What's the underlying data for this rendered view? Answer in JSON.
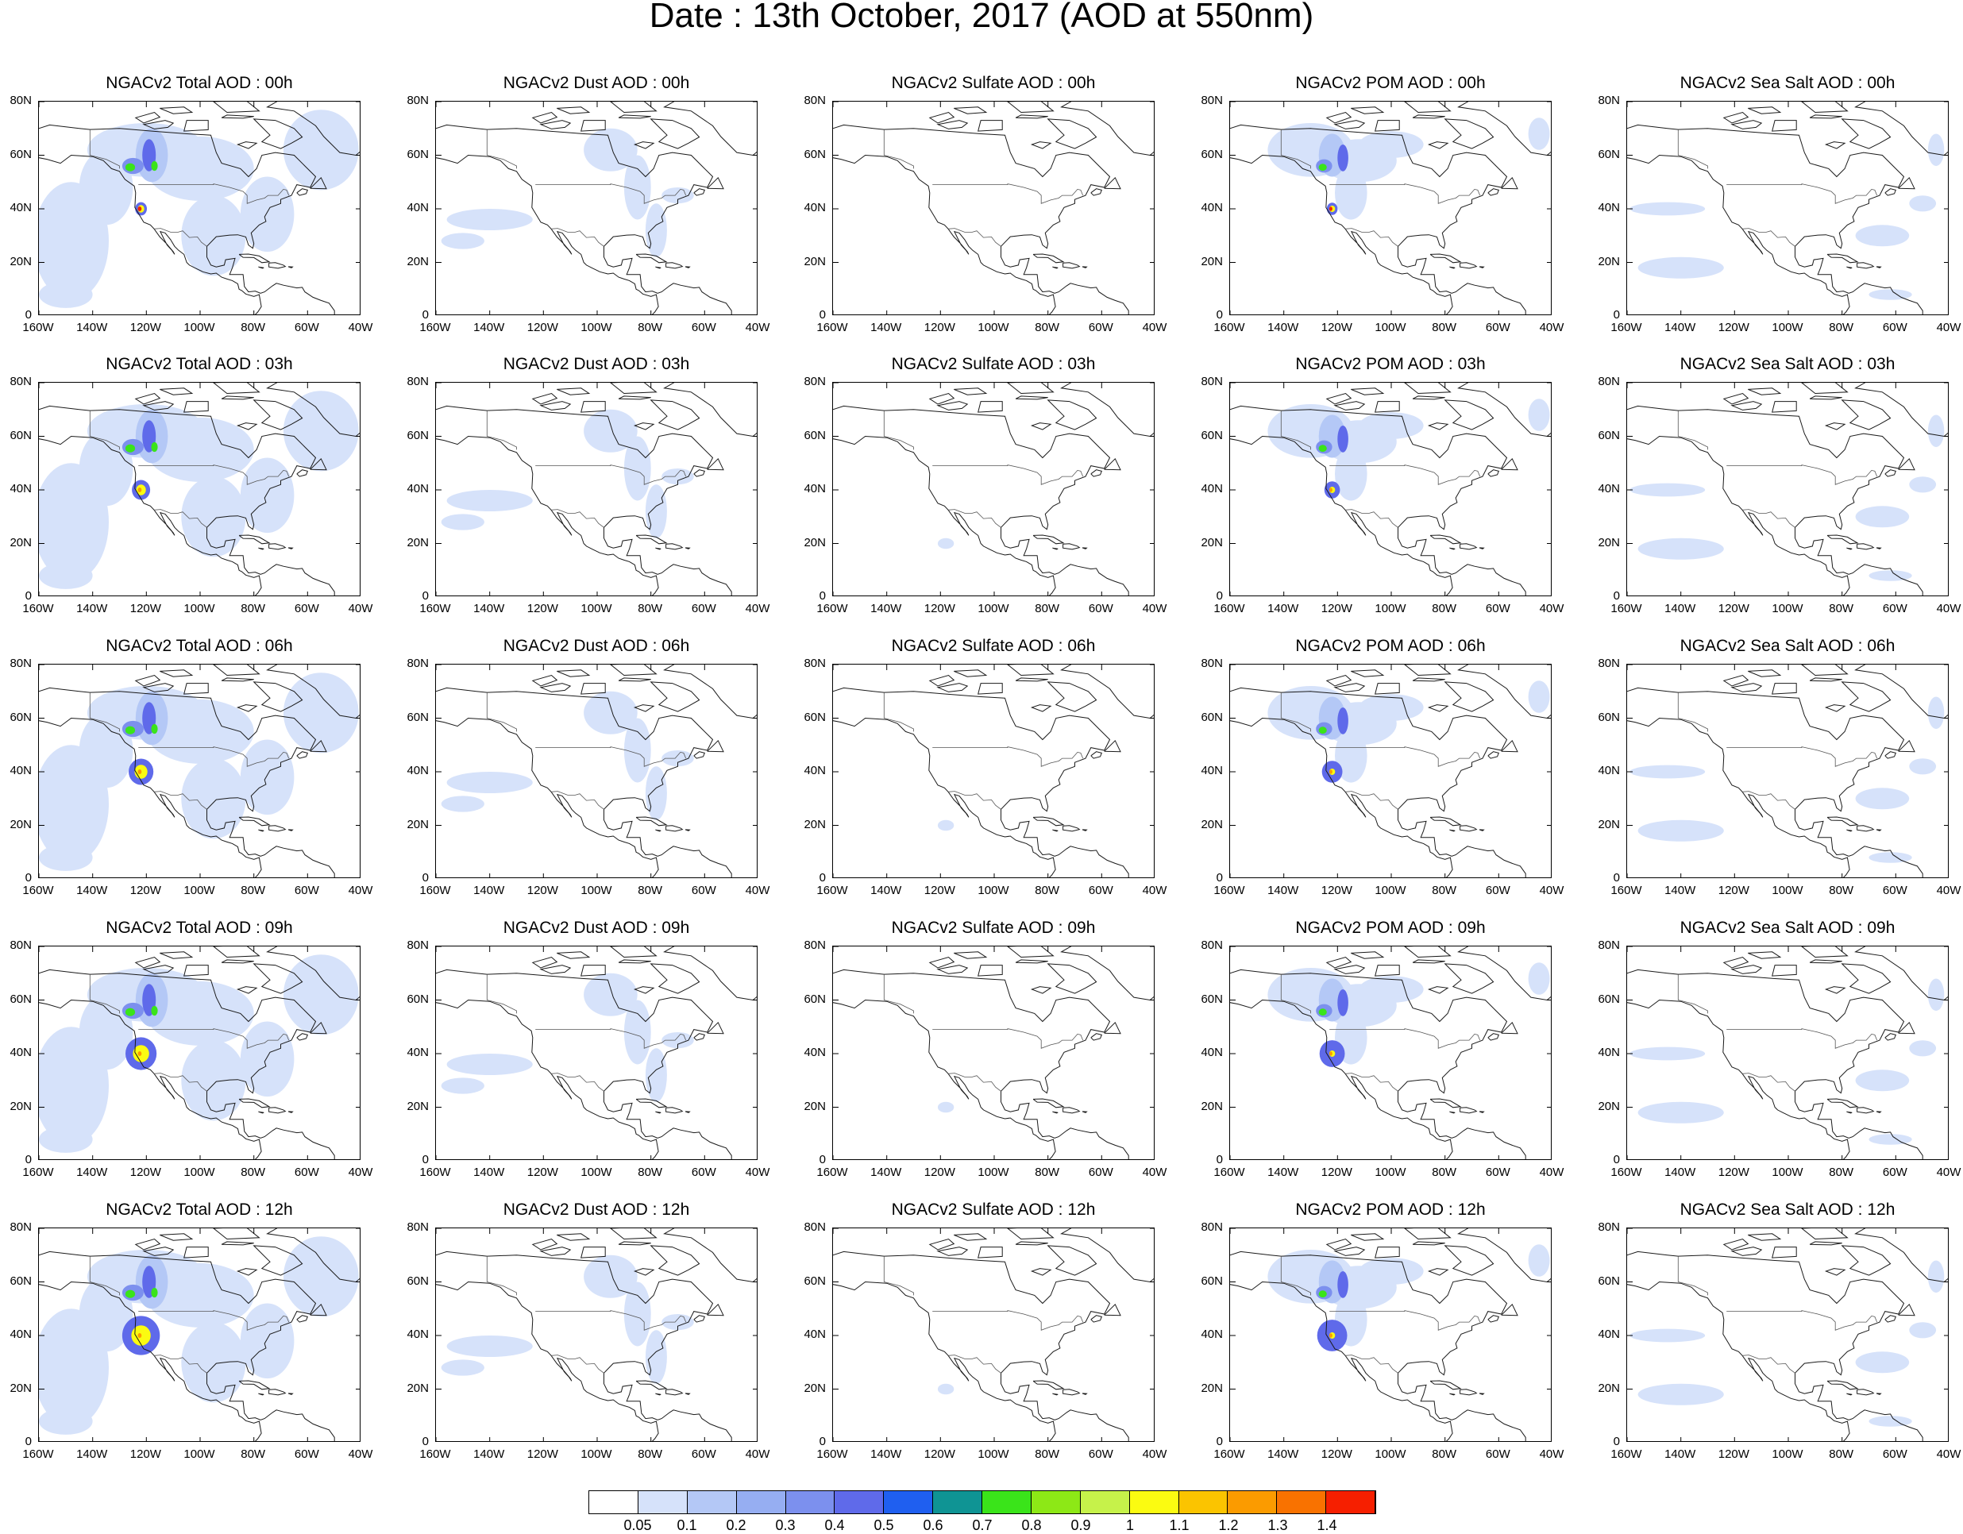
{
  "title": "Date : 13th October, 2017 (AOD at 550nm)",
  "lat_ticks": [
    "80N",
    "60N",
    "40N",
    "20N",
    "0"
  ],
  "lon_ticks": [
    "160W",
    "140W",
    "120W",
    "100W",
    "80W",
    "60W",
    "40W"
  ],
  "map_extent": {
    "lon": [
      -160,
      -40
    ],
    "lat": [
      0,
      80
    ]
  },
  "columns": [
    {
      "field": "total",
      "titles": [
        "NGACv2 Total AOD : 00h",
        "NGACv2 Total AOD : 03h",
        "NGACv2 Total AOD : 06h",
        "NGACv2 Total AOD : 09h",
        "NGACv2 Total AOD  : 12h"
      ]
    },
    {
      "field": "dust",
      "titles": [
        "NGACv2 Dust AOD : 00h",
        "NGACv2 Dust AOD : 03h",
        "NGACv2 Dust AOD : 06h",
        "NGACv2 Dust AOD : 09h",
        "NGACv2 Dust AOD : 12h"
      ]
    },
    {
      "field": "sulfate",
      "titles": [
        "NGACv2 Sulfate AOD : 00h",
        "NGACv2 Sulfate AOD : 03h",
        "NGACv2 Sulfate AOD : 06h",
        "NGACv2 Sulfate AOD : 09h",
        "NGACv2 Sulfate AOD : 12h"
      ]
    },
    {
      "field": "pom",
      "titles": [
        "NGACv2 POM AOD : 00h",
        "NGACv2 POM AOD : 03h",
        "NGACv2 POM AOD : 06h",
        "NGACv2 POM AOD : 09h",
        "NGACv2 POM  AOD : 12h"
      ]
    },
    {
      "field": "seasalt",
      "titles": [
        "NGACv2 Sea Salt AOD : 00h",
        "NGACv2 Sea Salt AOD : 03h",
        "NGACv2 Sea Salt AOD : 06h",
        "NGACv2 Sea Salt  AOD : 09h",
        "NGACv2 Sea Salt  AOD : 12h"
      ]
    }
  ],
  "colorbar": {
    "labels": [
      "0.05",
      "0.1",
      "0.2",
      "0.3",
      "0.4",
      "0.5",
      "0.6",
      "0.7",
      "0.8",
      "0.9",
      "1",
      "1.1",
      "1.2",
      "1.3",
      "1.4"
    ],
    "colors": [
      "#ffffff",
      "#d6e2fa",
      "#b4c8f6",
      "#96aef2",
      "#7c90ee",
      "#5f6aea",
      "#1f5ff0",
      "#0f9494",
      "#3ae41a",
      "#8de816",
      "#c6f24a",
      "#fbfb11",
      "#fbc400",
      "#fb9b00",
      "#f97200",
      "#f61f00"
    ]
  },
  "field_colors": {
    "light": "#d6e2fa",
    "mid": "#b4c8f6",
    "blue": "#7c90ee",
    "deep": "#5f6aea",
    "teal": "#0f9494",
    "green": "#3ae41a",
    "yellow": "#fbfb11",
    "orange": "#fb9b00",
    "red": "#f61f00",
    "coast": "#1a1a1a",
    "border": "#555555"
  }
}
